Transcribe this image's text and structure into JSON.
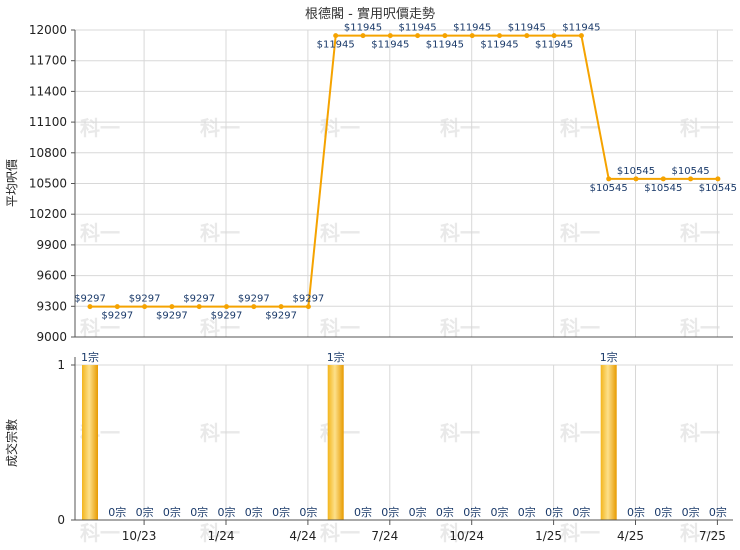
{
  "title": "根德閣 - 實用呎價走勢",
  "watermark": "科一",
  "colors": {
    "line": "#f5a300",
    "bar": "#f0a500",
    "grid": "#d8d8d8",
    "label": "#1a3a6a"
  },
  "chart_data": [
    {
      "type": "line",
      "title": "根德閣 - 實用呎價走勢",
      "ylabel": "平均呎價",
      "ylim": [
        9000,
        12000
      ],
      "yticks": [
        "12000",
        "11700",
        "11400",
        "11100",
        "10800",
        "10500",
        "10200",
        "9900",
        "9600",
        "9300",
        "9000"
      ],
      "xticks": [
        "10/23",
        "1/24",
        "4/24",
        "7/24",
        "10/24",
        "1/25",
        "4/25",
        "7/25"
      ],
      "grid": true,
      "values": [
        9297,
        9297,
        9297,
        9297,
        9297,
        9297,
        9297,
        9297,
        9297,
        11945,
        11945,
        11945,
        11945,
        11945,
        11945,
        11945,
        11945,
        11945,
        11945,
        10545,
        10545,
        10545,
        10545,
        10545
      ],
      "labels": [
        "$9297",
        "$9297",
        "$9297",
        "$9297",
        "$9297",
        "$9297",
        "$9297",
        "$9297",
        "$9297",
        "$11945",
        "$11945",
        "$11945",
        "$11945",
        "$11945",
        "$11945",
        "$11945",
        "$11945",
        "$11945",
        "$11945",
        "$10545",
        "$10545",
        "$10545",
        "$10545",
        "$10545"
      ]
    },
    {
      "type": "bar",
      "ylabel": "成交宗數",
      "ylim": [
        0,
        1
      ],
      "yticks": [
        "1",
        "0"
      ],
      "xticks": [
        "10/23",
        "1/24",
        "4/24",
        "7/24",
        "10/24",
        "1/25",
        "4/25",
        "7/25"
      ],
      "grid": true,
      "values": [
        1,
        0,
        0,
        0,
        0,
        0,
        0,
        0,
        0,
        1,
        0,
        0,
        0,
        0,
        0,
        0,
        0,
        0,
        0,
        1,
        0,
        0,
        0,
        0
      ],
      "labels": [
        "1宗",
        "0宗",
        "0宗",
        "0宗",
        "0宗",
        "0宗",
        "0宗",
        "0宗",
        "0宗",
        "1宗",
        "0宗",
        "0宗",
        "0宗",
        "0宗",
        "0宗",
        "0宗",
        "0宗",
        "0宗",
        "0宗",
        "1宗",
        "0宗",
        "0宗",
        "0宗",
        "0宗"
      ]
    }
  ]
}
